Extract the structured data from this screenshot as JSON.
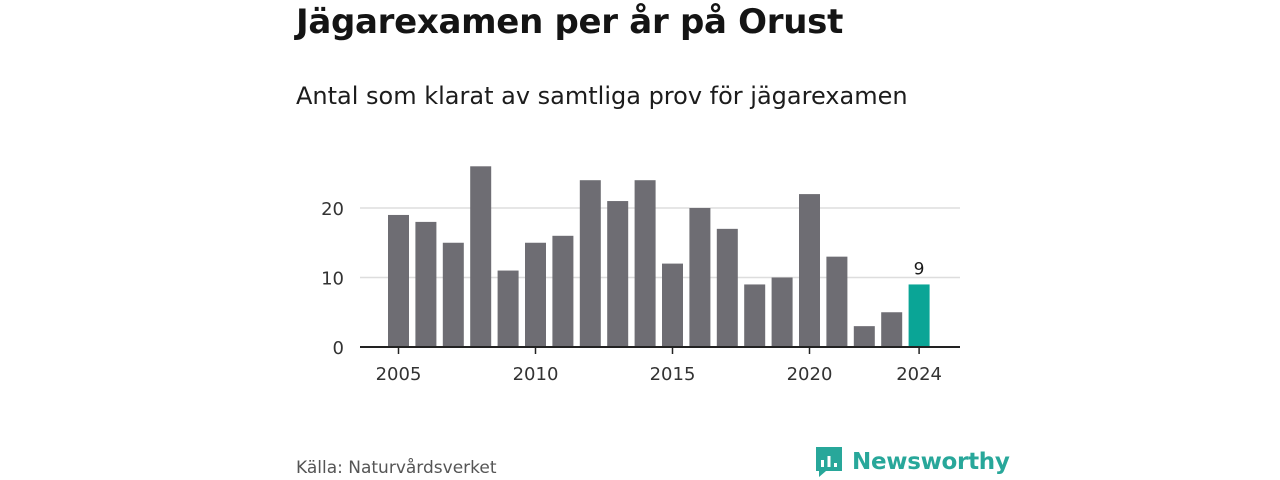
{
  "header": {
    "title": "Jägarexamen per år på Orust",
    "subtitle": "Antal som klarat av samtliga prov för jägarexamen"
  },
  "footer": {
    "source": "Källa: Naturvårdsverket",
    "brand": "Newsworthy",
    "brand_icon": "newsworthy-logo-icon"
  },
  "colors": {
    "bar": "#6e6d73",
    "highlight": "#0aa596",
    "gridline": "#dddddd",
    "axis": "#222222",
    "brand": "#28a79a"
  },
  "chart_data": {
    "type": "bar",
    "title": "Jägarexamen per år på Orust",
    "subtitle": "Antal som klarat av samtliga prov för jägarexamen",
    "xlabel": "",
    "ylabel": "",
    "categories": [
      2005,
      2006,
      2007,
      2008,
      2009,
      2010,
      2011,
      2012,
      2013,
      2014,
      2015,
      2016,
      2017,
      2018,
      2019,
      2020,
      2021,
      2022,
      2023,
      2024
    ],
    "values": [
      19,
      18,
      15,
      26,
      11,
      15,
      16,
      24,
      21,
      24,
      12,
      20,
      17,
      9,
      10,
      22,
      13,
      3,
      5,
      9
    ],
    "highlight": {
      "category": 2024,
      "value": 9,
      "label": "9"
    },
    "x_ticks": [
      2005,
      2010,
      2015,
      2020,
      2024
    ],
    "y_ticks": [
      0,
      10,
      20
    ],
    "ylim": [
      0,
      26
    ],
    "grid": true,
    "legend": "none"
  }
}
